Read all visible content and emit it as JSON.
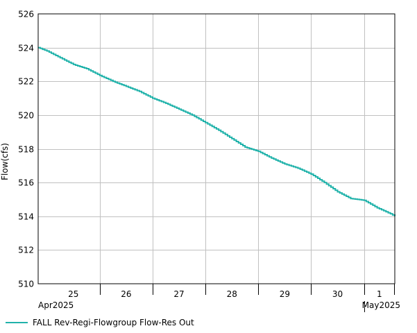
{
  "chart_data": {
    "type": "line",
    "title": "",
    "xlabel": "",
    "ylabel": "Flow(cfs)",
    "ylim": [
      510,
      526
    ],
    "yticks": [
      510,
      512,
      514,
      516,
      518,
      520,
      522,
      524,
      526
    ],
    "xlim": [
      "2025-04-24T20:00",
      "2025-05-01T14:00"
    ],
    "day_ticks": [
      {
        "date": "2025-04-25",
        "label": "25"
      },
      {
        "date": "2025-04-26",
        "label": "26"
      },
      {
        "date": "2025-04-27",
        "label": "27"
      },
      {
        "date": "2025-04-28",
        "label": "28"
      },
      {
        "date": "2025-04-29",
        "label": "29"
      },
      {
        "date": "2025-04-30",
        "label": "30"
      },
      {
        "date": "2025-05-01",
        "label": "1"
      }
    ],
    "month_labels": [
      {
        "date": "2025-04-24T20:00",
        "label": "Apr2025"
      },
      {
        "date": "2025-05-01T00:00",
        "label": "May2025"
      }
    ],
    "grid": true,
    "legend_position": "bottom-left",
    "series": [
      {
        "name": "FALL Rev-Regi-Flowgroup Flow-Res Out",
        "color": "#20b2aa",
        "points": [
          {
            "x": "2025-04-24T20:00",
            "y": 524.0
          },
          {
            "x": "2025-04-25T00:00",
            "y": 523.8
          },
          {
            "x": "2025-04-25T06:00",
            "y": 523.4
          },
          {
            "x": "2025-04-25T12:00",
            "y": 523.0
          },
          {
            "x": "2025-04-25T18:00",
            "y": 522.75
          },
          {
            "x": "2025-04-26T00:00",
            "y": 522.35
          },
          {
            "x": "2025-04-26T06:00",
            "y": 522.0
          },
          {
            "x": "2025-04-26T12:00",
            "y": 521.7
          },
          {
            "x": "2025-04-26T18:00",
            "y": 521.4
          },
          {
            "x": "2025-04-27T00:00",
            "y": 521.0
          },
          {
            "x": "2025-04-27T06:00",
            "y": 520.7
          },
          {
            "x": "2025-04-27T12:00",
            "y": 520.35
          },
          {
            "x": "2025-04-27T18:00",
            "y": 520.0
          },
          {
            "x": "2025-04-28T00:00",
            "y": 519.55
          },
          {
            "x": "2025-04-28T06:00",
            "y": 519.1
          },
          {
            "x": "2025-04-28T12:00",
            "y": 518.6
          },
          {
            "x": "2025-04-28T18:00",
            "y": 518.1
          },
          {
            "x": "2025-04-29T00:00",
            "y": 517.85
          },
          {
            "x": "2025-04-29T06:00",
            "y": 517.45
          },
          {
            "x": "2025-04-29T12:00",
            "y": 517.1
          },
          {
            "x": "2025-04-29T18:00",
            "y": 516.85
          },
          {
            "x": "2025-04-30T00:00",
            "y": 516.5
          },
          {
            "x": "2025-04-30T06:00",
            "y": 516.0
          },
          {
            "x": "2025-04-30T12:00",
            "y": 515.45
          },
          {
            "x": "2025-04-30T18:00",
            "y": 515.05
          },
          {
            "x": "2025-05-01T00:00",
            "y": 514.95
          },
          {
            "x": "2025-05-01T06:00",
            "y": 514.5
          },
          {
            "x": "2025-05-01T12:00",
            "y": 514.15
          },
          {
            "x": "2025-05-01T14:00",
            "y": 514.0
          }
        ]
      }
    ]
  }
}
